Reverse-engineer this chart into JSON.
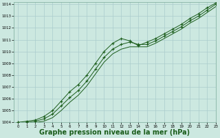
{
  "background_color": "#cce8e0",
  "grid_color": "#aacccc",
  "line_color": "#1a5c1a",
  "marker_color": "#1a5c1a",
  "xlabel": "Graphe pression niveau de la mer (hPa)",
  "xlabel_fontsize": 7,
  "xlim": [
    -0.5,
    23
  ],
  "ylim": [
    1004,
    1014.2
  ],
  "yticks": [
    1004,
    1005,
    1006,
    1007,
    1008,
    1009,
    1010,
    1011,
    1012,
    1013,
    1014
  ],
  "xticks": [
    0,
    1,
    2,
    3,
    4,
    5,
    6,
    7,
    8,
    9,
    10,
    11,
    12,
    13,
    14,
    15,
    16,
    17,
    18,
    19,
    20,
    21,
    22,
    23
  ],
  "series1_x": [
    0,
    1,
    2,
    3,
    4,
    5,
    6,
    7,
    8,
    9,
    10,
    11,
    12,
    13,
    14,
    15,
    16,
    17,
    18,
    19,
    20,
    21,
    22,
    23
  ],
  "series1_y": [
    1004.0,
    1004.1,
    1004.2,
    1004.5,
    1005.0,
    1005.8,
    1006.6,
    1007.2,
    1008.0,
    1009.0,
    1010.0,
    1010.7,
    1011.1,
    1010.9,
    1010.5,
    1010.8,
    1011.1,
    1011.5,
    1011.9,
    1012.3,
    1012.8,
    1013.2,
    1013.7,
    1014.1
  ],
  "series2_x": [
    0,
    1,
    2,
    3,
    4,
    5,
    6,
    7,
    8,
    9,
    10,
    11,
    12,
    13,
    14,
    15,
    16,
    17,
    18,
    19,
    20,
    21,
    22,
    23
  ],
  "series2_y": [
    1004.0,
    1004.0,
    1004.1,
    1004.3,
    1004.7,
    1005.4,
    1006.1,
    1006.7,
    1007.5,
    1008.5,
    1009.5,
    1010.2,
    1010.6,
    1010.8,
    1010.6,
    1010.6,
    1010.9,
    1011.3,
    1011.7,
    1012.1,
    1012.6,
    1013.0,
    1013.5,
    1014.0
  ],
  "series3_x": [
    0,
    1,
    2,
    3,
    4,
    5,
    6,
    7,
    8,
    9,
    10,
    11,
    12,
    13,
    14,
    15,
    16,
    17,
    18,
    19,
    20,
    21,
    22,
    23
  ],
  "series3_y": [
    1004.0,
    1004.0,
    1004.0,
    1004.1,
    1004.4,
    1005.0,
    1005.7,
    1006.3,
    1007.1,
    1008.1,
    1009.1,
    1009.8,
    1010.2,
    1010.4,
    1010.4,
    1010.4,
    1010.7,
    1011.1,
    1011.5,
    1011.9,
    1012.4,
    1012.8,
    1013.3,
    1013.8
  ]
}
